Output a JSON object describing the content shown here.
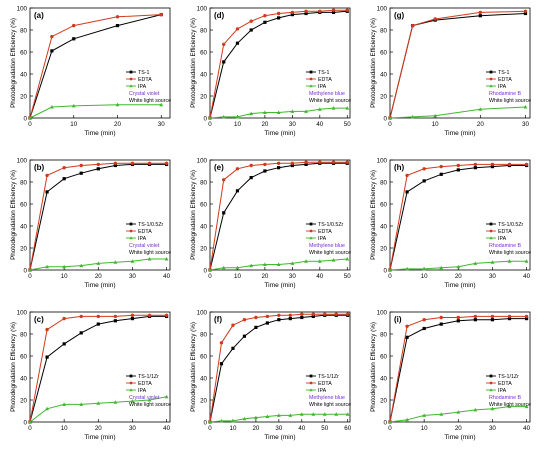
{
  "figure": {
    "y_axis_label": "Photodegradation Efficiency (%)",
    "x_axis_label": "Time (min)"
  },
  "chart_data": [
    {
      "type": "line",
      "panel_label": "(a)",
      "xlim": [
        0,
        32
      ],
      "xticks": [
        0,
        10,
        20,
        30
      ],
      "ylim": [
        0,
        100
      ],
      "yticks": [
        0,
        20,
        40,
        60,
        80,
        100
      ],
      "xlabel": "Time (min)",
      "ylabel": "Photodegradation Efficiency (%)",
      "legend": [
        "TS-1",
        "EDTA",
        "IPA"
      ],
      "dye": "Crystal violet",
      "light": "White light source",
      "series": [
        {
          "name": "TS-1",
          "color": "#000000",
          "x": [
            0,
            5,
            10,
            20,
            30
          ],
          "y": [
            0,
            61,
            72,
            84,
            94
          ]
        },
        {
          "name": "EDTA",
          "color": "#d03b1e",
          "x": [
            0,
            5,
            10,
            20,
            30
          ],
          "y": [
            0,
            74,
            84,
            92,
            94
          ]
        },
        {
          "name": "IPA",
          "color": "#3fb82d",
          "x": [
            0,
            5,
            10,
            20,
            30
          ],
          "y": [
            0,
            10,
            11,
            12,
            12
          ]
        }
      ]
    },
    {
      "type": "line",
      "panel_label": "(d)",
      "xlim": [
        0,
        51
      ],
      "xticks": [
        0,
        10,
        20,
        30,
        40,
        50
      ],
      "ylim": [
        0,
        100
      ],
      "yticks": [
        0,
        20,
        40,
        60,
        80,
        100
      ],
      "xlabel": "Time (min)",
      "ylabel": "Photodegradation Efficiency (%)",
      "legend": [
        "TS-1",
        "EDTA",
        "IPA"
      ],
      "dye": "Methylene blue",
      "light": "White light source",
      "series": [
        {
          "name": "TS-1",
          "color": "#000000",
          "x": [
            0,
            5,
            10,
            15,
            20,
            25,
            30,
            35,
            40,
            45,
            50
          ],
          "y": [
            0,
            51,
            68,
            80,
            87,
            91,
            94,
            95,
            96,
            96,
            97
          ]
        },
        {
          "name": "EDTA",
          "color": "#d03b1e",
          "x": [
            0,
            5,
            10,
            15,
            20,
            25,
            30,
            35,
            40,
            45,
            50
          ],
          "y": [
            0,
            67,
            81,
            88,
            93,
            95,
            96,
            97,
            97,
            98,
            98
          ]
        },
        {
          "name": "IPA",
          "color": "#3fb82d",
          "x": [
            0,
            5,
            10,
            15,
            20,
            25,
            30,
            35,
            40,
            45,
            50
          ],
          "y": [
            0,
            1,
            1,
            4,
            5,
            5,
            6,
            6,
            8,
            9,
            9
          ]
        }
      ]
    },
    {
      "type": "line",
      "panel_label": "(g)",
      "xlim": [
        0,
        31
      ],
      "xticks": [
        0,
        10,
        20,
        30
      ],
      "ylim": [
        0,
        100
      ],
      "yticks": [
        0,
        20,
        40,
        60,
        80,
        100
      ],
      "xlabel": "Time (min)",
      "ylabel": "Photodegradation Efficiency (%)",
      "legend": [
        "TS-1",
        "EDTA",
        "IPA"
      ],
      "dye": "Rhodamine B",
      "light": "White light source",
      "series": [
        {
          "name": "TS-1",
          "color": "#000000",
          "x": [
            0,
            5,
            10,
            20,
            30
          ],
          "y": [
            0,
            84,
            89,
            93,
            95
          ]
        },
        {
          "name": "EDTA",
          "color": "#d03b1e",
          "x": [
            0,
            5,
            10,
            20,
            30
          ],
          "y": [
            0,
            84,
            90,
            96,
            97
          ]
        },
        {
          "name": "IPA",
          "color": "#3fb82d",
          "x": [
            0,
            5,
            10,
            20,
            30
          ],
          "y": [
            0,
            1,
            2,
            8,
            10
          ]
        }
      ]
    },
    {
      "type": "line",
      "panel_label": "(b)",
      "xlim": [
        0,
        41
      ],
      "xticks": [
        0,
        10,
        20,
        30,
        40
      ],
      "ylim": [
        0,
        100
      ],
      "yticks": [
        0,
        20,
        40,
        60,
        80,
        100
      ],
      "xlabel": "Time (min)",
      "ylabel": "Photodegradation Efficiency (%)",
      "legend": [
        "TS-1/0.5Zr",
        "EDTA",
        "IPA"
      ],
      "dye": "Crystal violet",
      "light": "White light source",
      "series": [
        {
          "name": "TS-1/0.5Zr",
          "color": "#000000",
          "x": [
            0,
            5,
            10,
            15,
            20,
            25,
            30,
            35,
            40
          ],
          "y": [
            0,
            71,
            83,
            88,
            92,
            95,
            96,
            96,
            96
          ]
        },
        {
          "name": "EDTA",
          "color": "#d03b1e",
          "x": [
            0,
            5,
            10,
            15,
            20,
            25,
            30,
            35,
            40
          ],
          "y": [
            0,
            86,
            93,
            95,
            96,
            97,
            97,
            97,
            97
          ]
        },
        {
          "name": "IPA",
          "color": "#3fb82d",
          "x": [
            0,
            5,
            10,
            15,
            20,
            25,
            30,
            35,
            40
          ],
          "y": [
            0,
            3,
            3,
            4,
            6,
            7,
            8,
            10,
            10
          ]
        }
      ]
    },
    {
      "type": "line",
      "panel_label": "(e)",
      "xlim": [
        0,
        51
      ],
      "xticks": [
        0,
        10,
        20,
        30,
        40,
        50
      ],
      "ylim": [
        0,
        100
      ],
      "yticks": [
        0,
        20,
        40,
        60,
        80,
        100
      ],
      "xlabel": "Time (min)",
      "ylabel": "Photodegradation Efficiency (%)",
      "legend": [
        "TS-1/0.5Zr",
        "EDTA",
        "IPA"
      ],
      "dye": "Methylene blue",
      "light": "White light source",
      "series": [
        {
          "name": "TS-1/0.5Zr",
          "color": "#000000",
          "x": [
            0,
            5,
            10,
            15,
            20,
            25,
            30,
            35,
            40,
            45,
            50
          ],
          "y": [
            0,
            52,
            72,
            84,
            90,
            93,
            95,
            96,
            97,
            97,
            97
          ]
        },
        {
          "name": "EDTA",
          "color": "#d03b1e",
          "x": [
            0,
            5,
            10,
            15,
            20,
            25,
            30,
            35,
            40,
            45,
            50
          ],
          "y": [
            0,
            82,
            92,
            95,
            96,
            97,
            97,
            98,
            98,
            98,
            98
          ]
        },
        {
          "name": "IPA",
          "color": "#3fb82d",
          "x": [
            0,
            5,
            10,
            15,
            20,
            25,
            30,
            35,
            40,
            45,
            50
          ],
          "y": [
            0,
            2,
            2,
            4,
            5,
            5,
            6,
            8,
            8,
            9,
            10
          ]
        }
      ]
    },
    {
      "type": "line",
      "panel_label": "(h)",
      "xlim": [
        0,
        41
      ],
      "xticks": [
        0,
        10,
        20,
        30,
        40
      ],
      "ylim": [
        0,
        100
      ],
      "yticks": [
        0,
        20,
        40,
        60,
        80,
        100
      ],
      "xlabel": "Time (min)",
      "ylabel": "Photodegradation Efficiency (%)",
      "legend": [
        "TS-1/0.5Zr",
        "EDTA",
        "IPA"
      ],
      "dye": "Rhodamine B",
      "light": "White light source",
      "series": [
        {
          "name": "TS-1/0.5Zr",
          "color": "#000000",
          "x": [
            0,
            5,
            10,
            15,
            20,
            25,
            30,
            35,
            40
          ],
          "y": [
            0,
            71,
            81,
            87,
            91,
            93,
            94,
            95,
            95
          ]
        },
        {
          "name": "EDTA",
          "color": "#d03b1e",
          "x": [
            0,
            5,
            10,
            15,
            20,
            25,
            30,
            35,
            40
          ],
          "y": [
            0,
            86,
            92,
            94,
            95,
            96,
            96,
            96,
            96
          ]
        },
        {
          "name": "IPA",
          "color": "#3fb82d",
          "x": [
            0,
            5,
            10,
            15,
            20,
            25,
            30,
            35,
            40
          ],
          "y": [
            0,
            1,
            1,
            2,
            3,
            6,
            7,
            8,
            8
          ]
        }
      ]
    },
    {
      "type": "line",
      "panel_label": "(c)",
      "xlim": [
        0,
        41
      ],
      "xticks": [
        0,
        10,
        20,
        30,
        40
      ],
      "ylim": [
        0,
        100
      ],
      "yticks": [
        0,
        20,
        40,
        60,
        80,
        100
      ],
      "xlabel": "Time (min)",
      "ylabel": "Photodegradation Efficiency (%)",
      "legend": [
        "TS-1/1Zr",
        "EDTA",
        "IPA"
      ],
      "dye": "Crystal violet",
      "light": "White light source",
      "series": [
        {
          "name": "TS-1/1Zr",
          "color": "#000000",
          "x": [
            0,
            5,
            10,
            15,
            20,
            25,
            30,
            35,
            40
          ],
          "y": [
            0,
            59,
            71,
            81,
            89,
            92,
            94,
            96,
            96
          ]
        },
        {
          "name": "EDTA",
          "color": "#d03b1e",
          "x": [
            0,
            5,
            10,
            15,
            20,
            25,
            30,
            35,
            40
          ],
          "y": [
            0,
            84,
            94,
            96,
            96,
            96,
            97,
            97,
            97
          ]
        },
        {
          "name": "IPA",
          "color": "#3fb82d",
          "x": [
            0,
            5,
            10,
            15,
            20,
            25,
            30,
            35,
            40
          ],
          "y": [
            0,
            12,
            16,
            16,
            17,
            18,
            19,
            20,
            23
          ]
        }
      ]
    },
    {
      "type": "line",
      "panel_label": "(f)",
      "xlim": [
        0,
        61
      ],
      "xticks": [
        0,
        10,
        20,
        30,
        40,
        50,
        60
      ],
      "ylim": [
        0,
        100
      ],
      "yticks": [
        0,
        20,
        40,
        60,
        80,
        100
      ],
      "xlabel": "Time (min)",
      "ylabel": "Photodegradation Efficiency (%)",
      "legend": [
        "TS-1/1Zr",
        "EDTA",
        "IPA"
      ],
      "dye": "Methylene blue",
      "light": "White light source",
      "series": [
        {
          "name": "TS-1/1Zr",
          "color": "#000000",
          "x": [
            0,
            5,
            10,
            15,
            20,
            25,
            30,
            35,
            40,
            45,
            50,
            55,
            60
          ],
          "y": [
            0,
            53,
            67,
            78,
            86,
            90,
            93,
            94,
            95,
            96,
            97,
            97,
            97
          ]
        },
        {
          "name": "EDTA",
          "color": "#d03b1e",
          "x": [
            0,
            5,
            10,
            15,
            20,
            25,
            30,
            35,
            40,
            45,
            50,
            55,
            60
          ],
          "y": [
            0,
            72,
            88,
            93,
            95,
            96,
            97,
            97,
            98,
            98,
            98,
            98,
            98
          ]
        },
        {
          "name": "IPA",
          "color": "#3fb82d",
          "x": [
            0,
            5,
            10,
            15,
            20,
            25,
            30,
            35,
            40,
            45,
            50,
            55,
            60
          ],
          "y": [
            0,
            1,
            1,
            3,
            4,
            5,
            6,
            6,
            7,
            7,
            7,
            7,
            7
          ]
        }
      ]
    },
    {
      "type": "line",
      "panel_label": "(i)",
      "xlim": [
        0,
        41
      ],
      "xticks": [
        0,
        10,
        20,
        30,
        40
      ],
      "ylim": [
        0,
        100
      ],
      "yticks": [
        0,
        20,
        40,
        60,
        80,
        100
      ],
      "xlabel": "Time (min)",
      "ylabel": "Photodegradation Efficiency (%)",
      "legend": [
        "TS-1/1Zr",
        "EDTA",
        "IPA"
      ],
      "dye": "Rhodamine B",
      "light": "White light source",
      "series": [
        {
          "name": "TS-1/1Zr",
          "color": "#000000",
          "x": [
            0,
            5,
            10,
            15,
            20,
            25,
            30,
            35,
            40
          ],
          "y": [
            0,
            77,
            85,
            89,
            92,
            93,
            93,
            94,
            94
          ]
        },
        {
          "name": "EDTA",
          "color": "#d03b1e",
          "x": [
            0,
            5,
            10,
            15,
            20,
            25,
            30,
            35,
            40
          ],
          "y": [
            0,
            87,
            93,
            95,
            95,
            96,
            96,
            96,
            96
          ]
        },
        {
          "name": "IPA",
          "color": "#3fb82d",
          "x": [
            0,
            5,
            10,
            15,
            20,
            25,
            30,
            35,
            40
          ],
          "y": [
            0,
            2,
            6,
            7,
            9,
            11,
            12,
            14,
            14
          ]
        }
      ]
    }
  ],
  "colors": {
    "dye_label": "#7b2fd3",
    "axis": "#000000",
    "grid_line_ink": "#000000"
  }
}
